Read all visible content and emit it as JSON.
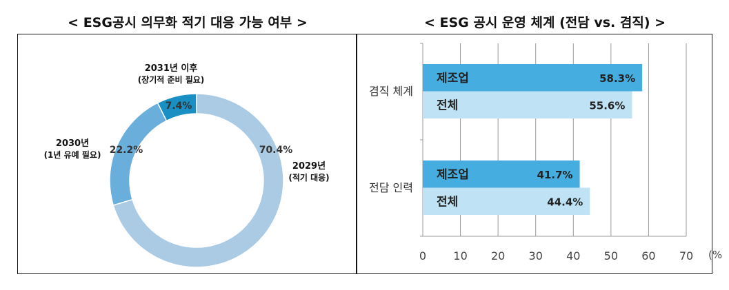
{
  "chart_data": [
    {
      "type": "pie",
      "title": "< ESG공시 의무화 적기 대응 가능 여부 >",
      "donut": true,
      "slices": [
        {
          "label_line1": "2029년",
          "label_line2": "(적기 대응)",
          "value": 70.4,
          "value_label": "70.4%",
          "color": "#abcbe5"
        },
        {
          "label_line1": "2030년",
          "label_line2": "(1년 유예 필요)",
          "value": 22.2,
          "value_label": "22.2%",
          "color": "#6aaedc"
        },
        {
          "label_line1": "2031년 이후",
          "label_line2": "(장기적 준비 필요)",
          "value": 7.4,
          "value_label": "7.4%",
          "color": "#1a8fc3"
        }
      ]
    },
    {
      "type": "bar",
      "orientation": "horizontal",
      "title": "< ESG 공시 운영 체계 (전담 vs. 겸직) >",
      "categories": [
        "겸직 체계",
        "전담 인력"
      ],
      "series": [
        {
          "name": "제조업",
          "values": [
            58.3,
            41.7
          ],
          "value_labels": [
            "58.3%",
            "41.7%"
          ],
          "color": "#45ade0"
        },
        {
          "name": "전체",
          "values": [
            55.6,
            44.4
          ],
          "value_labels": [
            "55.6%",
            "44.4%"
          ],
          "color": "#bfe3f4"
        }
      ],
      "xlim": [
        0,
        70
      ],
      "xticks": [
        "0",
        "10",
        "20",
        "30",
        "40",
        "50",
        "60",
        "70"
      ],
      "xunit": "(%",
      "grid": true
    }
  ]
}
